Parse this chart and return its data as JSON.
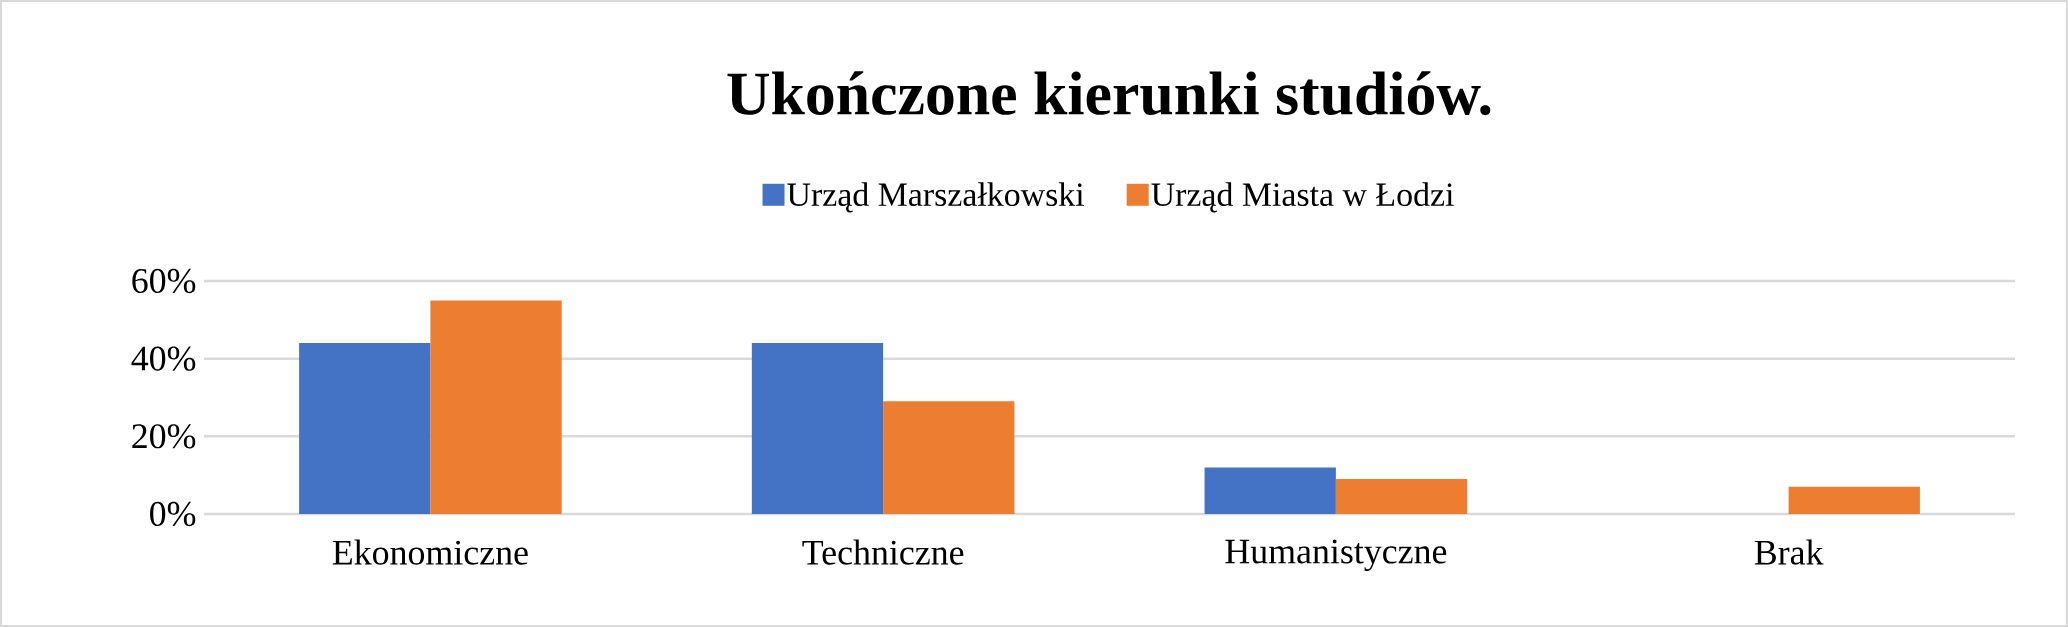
{
  "chart_data": {
    "type": "bar",
    "title": "Ukończone kierunki studiów.",
    "categories": [
      "Ekonomiczne",
      "Techniczne",
      "Humanistyczne",
      "Brak"
    ],
    "series": [
      {
        "name": "Urząd Marszałkowski",
        "color": "#4472c4",
        "values": [
          44,
          44,
          12,
          0
        ]
      },
      {
        "name": "Urząd Miasta w Łodzi",
        "color": "#ed7d31",
        "values": [
          55,
          29,
          9,
          7
        ]
      }
    ],
    "ylim": [
      0,
      60
    ],
    "yticks": [
      {
        "value": 0,
        "label": "0%"
      },
      {
        "value": 20,
        "label": "20%"
      },
      {
        "value": 40,
        "label": "40%"
      },
      {
        "value": 60,
        "label": "60%"
      }
    ],
    "grid": "y",
    "legend": "top"
  }
}
